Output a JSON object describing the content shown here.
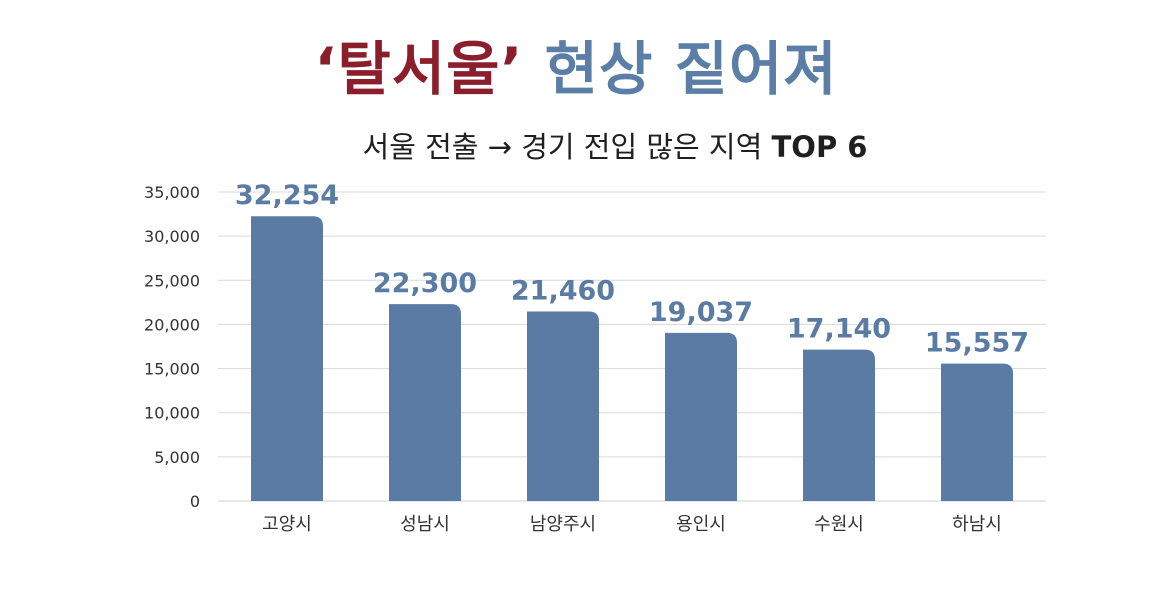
{
  "headline": {
    "part1": "‘탈서울’",
    "part2": "현상 짙어져"
  },
  "chart_data": {
    "type": "bar",
    "title": "서울 전출 → 경기 전입 많은 지역",
    "title_suffix": "TOP 6",
    "categories": [
      "고양시",
      "성남시",
      "남양주시",
      "용인시",
      "수원시",
      "하남시"
    ],
    "values": [
      32254,
      22300,
      21460,
      19037,
      17140,
      15557
    ],
    "data_labels": [
      "32,254",
      "22,300",
      "21,460",
      "19,037",
      "17,140",
      "15,557"
    ],
    "ylim": [
      0,
      35000
    ],
    "yticks": [
      "0",
      "5,000",
      "10,000",
      "15,000",
      "20,000",
      "25,000",
      "30,000",
      "35,000"
    ],
    "grid": true,
    "bar_color": "#5a7ba4",
    "label_color": "#5a7ba4"
  },
  "colors": {
    "headline_red": "#8b1e2b",
    "headline_blue": "#5a7ea6"
  }
}
